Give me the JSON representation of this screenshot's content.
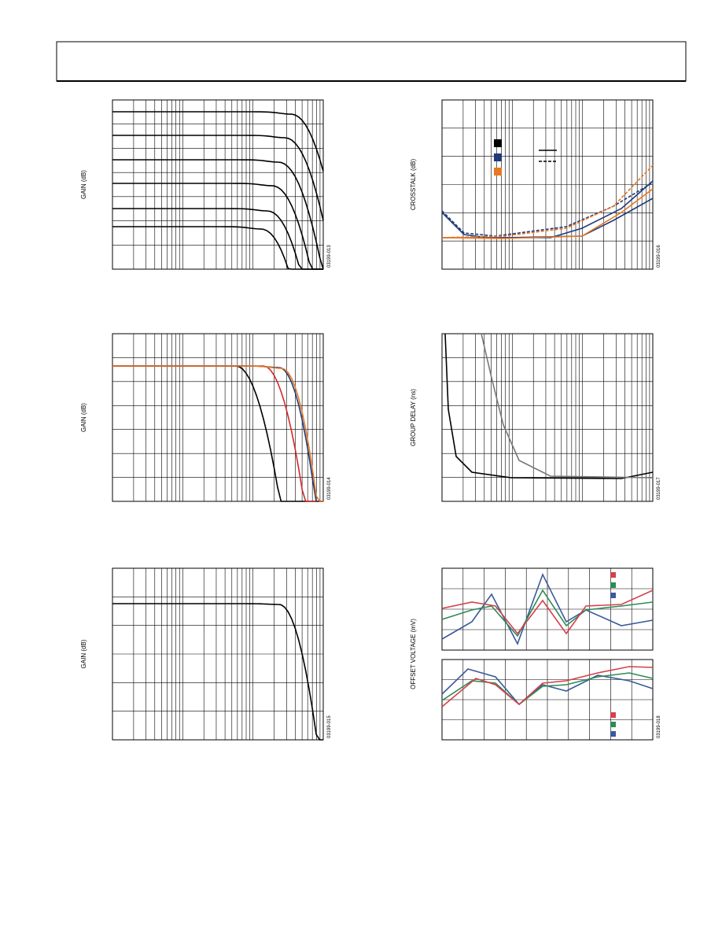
{
  "figures": [
    {
      "ylabel": "GAIN (dB)",
      "code": "03199-013"
    },
    {
      "ylabel": "CROSSTALK (dB)",
      "code": "03199-016"
    },
    {
      "ylabel": "GAIN (dB)",
      "code": "03199-014"
    },
    {
      "ylabel": "GROUP DELAY (ns)",
      "code": "03199-017"
    },
    {
      "ylabel": "GAIN (dB)",
      "code": "03199-015"
    },
    {
      "ylabel": "OFFSET VOLTAGE (mV)",
      "code": "03199-018"
    }
  ]
}
